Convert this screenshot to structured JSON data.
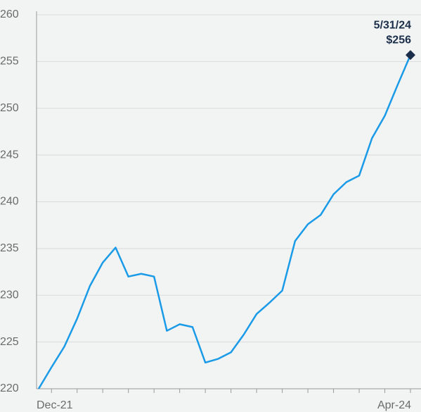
{
  "chart_data": {
    "type": "line",
    "categories": [
      "Dec-21",
      null,
      null,
      null,
      null,
      null,
      null,
      null,
      null,
      null,
      null,
      null,
      null,
      null,
      null,
      null,
      null,
      null,
      null,
      null,
      null,
      null,
      null,
      null,
      null,
      null,
      null,
      null,
      "Apr-24",
      null
    ],
    "series": [
      {
        "color": "#1a9be8",
        "values": [
          220,
          222.3,
          224.5,
          227.5,
          231,
          233.5,
          235.1,
          232,
          232.3,
          232,
          226.2,
          226.9,
          226.6,
          222.8,
          223.2,
          223.9,
          225.8,
          228,
          229.2,
          230.5,
          235.8,
          237.6,
          238.6,
          240.8,
          242.1,
          242.8,
          246.8,
          249.2,
          252.5,
          255.7
        ]
      }
    ],
    "ylim": [
      220,
      260
    ],
    "yticks": [
      220,
      225,
      230,
      235,
      240,
      245,
      250,
      255,
      260
    ],
    "grid": true,
    "end_annotation": {
      "date": "5/31/24",
      "value_label": "$256",
      "color": "#1b2f4a"
    }
  }
}
